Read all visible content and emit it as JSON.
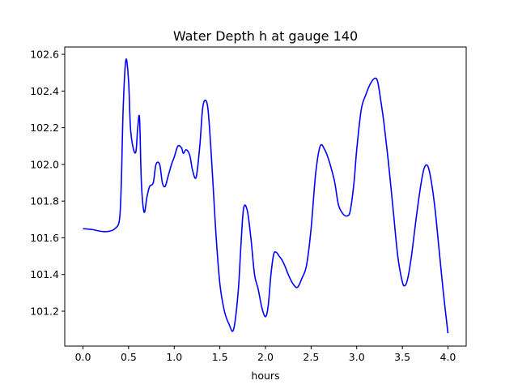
{
  "chart_data": {
    "type": "line",
    "title": "Water Depth h at gauge 140",
    "xlabel": "hours",
    "ylabel": "",
    "xlim": [
      -0.2,
      4.2
    ],
    "ylim": [
      101.01,
      102.64
    ],
    "xticks": [
      0.0,
      0.5,
      1.0,
      1.5,
      2.0,
      2.5,
      3.0,
      3.5,
      4.0
    ],
    "xtick_labels": [
      "0.0",
      "0.5",
      "1.0",
      "1.5",
      "2.0",
      "2.5",
      "3.0",
      "3.5",
      "4.0"
    ],
    "yticks": [
      101.2,
      101.4,
      101.6,
      101.8,
      102.0,
      102.2,
      102.4,
      102.6
    ],
    "ytick_labels": [
      "101.2",
      "101.4",
      "101.6",
      "101.8",
      "102.0",
      "102.2",
      "102.4",
      "102.6"
    ],
    "grid": false,
    "series": [
      {
        "color": "#0000ff",
        "x": [
          0.0,
          0.1,
          0.2,
          0.28,
          0.35,
          0.4,
          0.42,
          0.44,
          0.47,
          0.5,
          0.52,
          0.55,
          0.58,
          0.6,
          0.62,
          0.64,
          0.67,
          0.7,
          0.73,
          0.77,
          0.8,
          0.84,
          0.87,
          0.9,
          0.93,
          0.97,
          1.0,
          1.04,
          1.08,
          1.1,
          1.13,
          1.17,
          1.2,
          1.24,
          1.28,
          1.31,
          1.34,
          1.37,
          1.4,
          1.43,
          1.46,
          1.5,
          1.55,
          1.6,
          1.65,
          1.7,
          1.73,
          1.76,
          1.8,
          1.84,
          1.88,
          1.92,
          1.96,
          2.0,
          2.03,
          2.06,
          2.09,
          2.12,
          2.15,
          2.18,
          2.21,
          2.25,
          2.3,
          2.35,
          2.4,
          2.45,
          2.5,
          2.55,
          2.6,
          2.65,
          2.69,
          2.72,
          2.76,
          2.8,
          2.85,
          2.9,
          2.93,
          2.97,
          3.0,
          3.05,
          3.1,
          3.15,
          3.2,
          3.23,
          3.26,
          3.3,
          3.35,
          3.4,
          3.45,
          3.5,
          3.53,
          3.56,
          3.6,
          3.65,
          3.7,
          3.74,
          3.78,
          3.82,
          3.86,
          3.9,
          3.95,
          4.0
        ],
        "y": [
          101.65,
          101.645,
          101.635,
          101.635,
          101.65,
          101.7,
          101.9,
          102.3,
          102.57,
          102.45,
          102.2,
          102.09,
          102.07,
          102.2,
          102.25,
          101.9,
          101.74,
          101.82,
          101.88,
          101.9,
          102.0,
          102.0,
          101.9,
          101.88,
          101.93,
          102.0,
          102.04,
          102.1,
          102.09,
          102.06,
          102.08,
          102.05,
          101.97,
          101.93,
          102.1,
          102.3,
          102.35,
          102.3,
          102.1,
          101.85,
          101.6,
          101.35,
          101.2,
          101.13,
          101.1,
          101.3,
          101.55,
          101.76,
          101.75,
          101.6,
          101.4,
          101.32,
          101.22,
          101.17,
          101.23,
          101.4,
          101.51,
          101.52,
          101.5,
          101.48,
          101.45,
          101.4,
          101.35,
          101.33,
          101.38,
          101.45,
          101.65,
          101.95,
          102.1,
          102.08,
          102.03,
          101.98,
          101.9,
          101.78,
          101.73,
          101.72,
          101.75,
          101.9,
          102.08,
          102.3,
          102.38,
          102.44,
          102.47,
          102.45,
          102.36,
          102.22,
          102.0,
          101.75,
          101.5,
          101.36,
          101.34,
          101.38,
          101.5,
          101.7,
          101.88,
          101.98,
          101.99,
          101.9,
          101.75,
          101.55,
          101.3,
          101.08
        ]
      }
    ]
  }
}
